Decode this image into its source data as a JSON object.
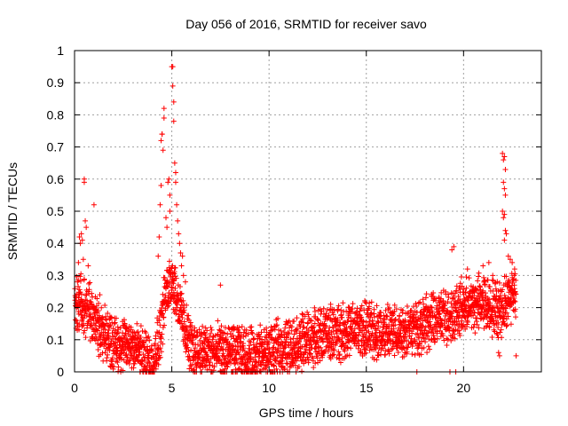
{
  "chart_data": {
    "type": "scatter",
    "title": "Day 056 of 2016, SRMTID for receiver savo",
    "xlabel": "GPS time / hours",
    "ylabel": "SRMTID / TECUs",
    "xlim": [
      0,
      24
    ],
    "ylim": [
      0,
      1
    ],
    "xticks": [
      0,
      5,
      10,
      15,
      20
    ],
    "yticks": [
      0,
      0.1,
      0.2,
      0.3,
      0.4,
      0.5,
      0.6,
      0.7,
      0.8,
      0.9,
      1
    ],
    "xtick_labels": [
      "0",
      "5",
      "10",
      "15",
      "20"
    ],
    "ytick_labels": [
      "0",
      "0.1",
      "0.2",
      "0.3",
      "0.4",
      "0.5",
      "0.6",
      "0.7",
      "0.8",
      "0.9",
      "1"
    ],
    "grid": true,
    "marker": "+",
    "series_color": "#ff0000",
    "profile": {
      "hours": [
        0,
        0.3,
        0.6,
        1.0,
        1.5,
        2.0,
        2.5,
        3.0,
        3.5,
        4.0,
        4.4,
        4.7,
        5.0,
        5.3,
        5.6,
        6.0,
        7.0,
        8.0,
        9.0,
        10.0,
        11.0,
        12.0,
        13.0,
        14.0,
        15.0,
        16.0,
        17.0,
        18.0,
        19.0,
        20.0,
        21.0,
        21.5,
        22.0,
        22.4,
        22.7
      ],
      "median": [
        0.2,
        0.22,
        0.2,
        0.16,
        0.12,
        0.09,
        0.08,
        0.09,
        0.05,
        0.03,
        0.12,
        0.25,
        0.3,
        0.22,
        0.15,
        0.07,
        0.06,
        0.06,
        0.05,
        0.06,
        0.08,
        0.1,
        0.12,
        0.13,
        0.13,
        0.12,
        0.13,
        0.15,
        0.17,
        0.2,
        0.22,
        0.2,
        0.2,
        0.24,
        0.26
      ]
    },
    "highlights": [
      {
        "x": 0.1,
        "y": 0.16
      },
      {
        "x": 0.15,
        "y": 0.28
      },
      {
        "x": 0.2,
        "y": 0.34
      },
      {
        "x": 0.25,
        "y": 0.42
      },
      {
        "x": 0.3,
        "y": 0.4
      },
      {
        "x": 0.35,
        "y": 0.43
      },
      {
        "x": 0.4,
        "y": 0.41
      },
      {
        "x": 0.45,
        "y": 0.35
      },
      {
        "x": 0.5,
        "y": 0.6
      },
      {
        "x": 0.5,
        "y": 0.59
      },
      {
        "x": 0.55,
        "y": 0.47
      },
      {
        "x": 0.6,
        "y": 0.45
      },
      {
        "x": 0.7,
        "y": 0.33
      },
      {
        "x": 1.0,
        "y": 0.52
      },
      {
        "x": 1.3,
        "y": 0.24
      },
      {
        "x": 4.3,
        "y": 0.36
      },
      {
        "x": 4.35,
        "y": 0.42
      },
      {
        "x": 4.4,
        "y": 0.52
      },
      {
        "x": 4.45,
        "y": 0.58
      },
      {
        "x": 4.45,
        "y": 0.72
      },
      {
        "x": 4.5,
        "y": 0.74
      },
      {
        "x": 4.5,
        "y": 0.74
      },
      {
        "x": 4.55,
        "y": 0.69
      },
      {
        "x": 4.6,
        "y": 0.79
      },
      {
        "x": 4.6,
        "y": 0.82
      },
      {
        "x": 4.7,
        "y": 0.48
      },
      {
        "x": 4.75,
        "y": 0.45
      },
      {
        "x": 4.8,
        "y": 0.59
      },
      {
        "x": 4.85,
        "y": 0.6
      },
      {
        "x": 4.9,
        "y": 0.55
      },
      {
        "x": 4.9,
        "y": 0.5
      },
      {
        "x": 5.0,
        "y": 0.95
      },
      {
        "x": 5.05,
        "y": 0.95
      },
      {
        "x": 5.05,
        "y": 0.89
      },
      {
        "x": 5.1,
        "y": 0.84
      },
      {
        "x": 5.1,
        "y": 0.78
      },
      {
        "x": 5.15,
        "y": 0.65
      },
      {
        "x": 5.2,
        "y": 0.62
      },
      {
        "x": 5.2,
        "y": 0.59
      },
      {
        "x": 5.25,
        "y": 0.52
      },
      {
        "x": 5.3,
        "y": 0.47
      },
      {
        "x": 5.35,
        "y": 0.43
      },
      {
        "x": 5.4,
        "y": 0.4
      },
      {
        "x": 5.45,
        "y": 0.37
      },
      {
        "x": 5.5,
        "y": 0.33
      },
      {
        "x": 5.55,
        "y": 0.36
      },
      {
        "x": 5.6,
        "y": 0.3
      },
      {
        "x": 5.7,
        "y": 0.28
      },
      {
        "x": 7.5,
        "y": 0.27
      },
      {
        "x": 8.3,
        "y": 0.0
      },
      {
        "x": 10.3,
        "y": 0.0
      },
      {
        "x": 17.6,
        "y": 0.0
      },
      {
        "x": 19.3,
        "y": 0.0
      },
      {
        "x": 19.6,
        "y": 0.0
      },
      {
        "x": 19.4,
        "y": 0.38
      },
      {
        "x": 19.5,
        "y": 0.39
      },
      {
        "x": 20.2,
        "y": 0.32
      },
      {
        "x": 21.0,
        "y": 0.33
      },
      {
        "x": 21.3,
        "y": 0.34
      },
      {
        "x": 21.5,
        "y": 0.3
      },
      {
        "x": 21.7,
        "y": 0.12
      },
      {
        "x": 21.8,
        "y": 0.06
      },
      {
        "x": 21.85,
        "y": 0.05
      },
      {
        "x": 22.0,
        "y": 0.68
      },
      {
        "x": 22.05,
        "y": 0.66
      },
      {
        "x": 22.1,
        "y": 0.67
      },
      {
        "x": 22.15,
        "y": 0.63
      },
      {
        "x": 22.05,
        "y": 0.59
      },
      {
        "x": 22.1,
        "y": 0.57
      },
      {
        "x": 22.15,
        "y": 0.55
      },
      {
        "x": 22.0,
        "y": 0.5
      },
      {
        "x": 22.05,
        "y": 0.48
      },
      {
        "x": 22.1,
        "y": 0.49
      },
      {
        "x": 22.15,
        "y": 0.44
      },
      {
        "x": 22.2,
        "y": 0.43
      },
      {
        "x": 22.1,
        "y": 0.41
      },
      {
        "x": 22.3,
        "y": 0.36
      },
      {
        "x": 22.4,
        "y": 0.35
      },
      {
        "x": 22.5,
        "y": 0.34
      },
      {
        "x": 22.6,
        "y": 0.3
      },
      {
        "x": 22.65,
        "y": 0.25
      },
      {
        "x": 22.7,
        "y": 0.05
      }
    ]
  }
}
